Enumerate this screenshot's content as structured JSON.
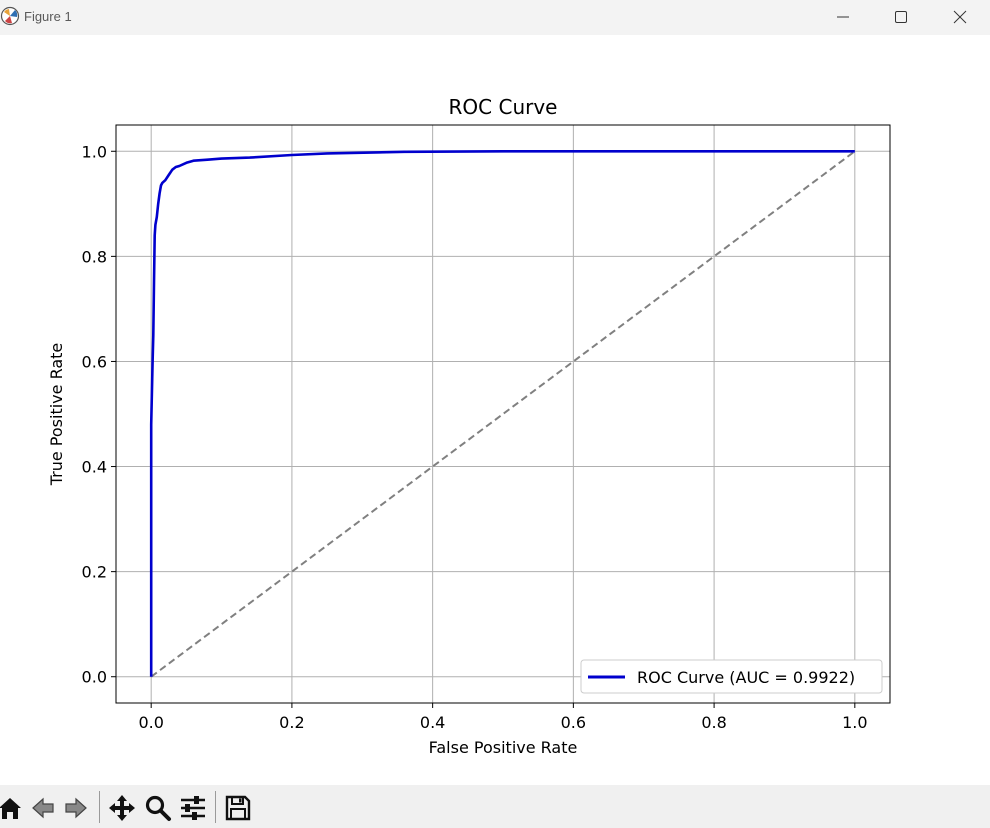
{
  "window": {
    "title": "Figure 1",
    "icons": [
      "matplotlib-icon",
      "minimize-icon",
      "maximize-icon",
      "close-icon"
    ]
  },
  "toolbar": {
    "icons": [
      "home-icon",
      "back-icon",
      "forward-icon",
      "pan-icon",
      "zoom-icon",
      "configure-subplots-icon",
      "save-icon"
    ]
  },
  "chart_data": {
    "type": "line",
    "title": "ROC Curve",
    "xlabel": "False Positive Rate",
    "ylabel": "True Positive Rate",
    "xlim": [
      -0.05,
      1.05
    ],
    "ylim": [
      -0.05,
      1.05
    ],
    "xticks": [
      "0.0",
      "0.2",
      "0.4",
      "0.6",
      "0.8",
      "1.0"
    ],
    "yticks": [
      "0.0",
      "0.2",
      "0.4",
      "0.6",
      "0.8",
      "1.0"
    ],
    "grid": true,
    "legend": {
      "position": "lower-right",
      "entries": [
        "ROC Curve (AUC = 0.9922)"
      ]
    },
    "series": [
      {
        "name": "ROC Curve (AUC = 0.9922)",
        "color": "#0000cd",
        "style": "solid",
        "x": [
          0.0,
          0.0,
          0.002,
          0.003,
          0.004,
          0.005,
          0.006,
          0.008,
          0.01,
          0.012,
          0.014,
          0.016,
          0.02,
          0.025,
          0.03,
          0.035,
          0.04,
          0.05,
          0.06,
          0.08,
          0.1,
          0.14,
          0.2,
          0.25,
          0.36,
          0.5,
          0.7,
          1.0
        ],
        "y": [
          0.0,
          0.48,
          0.6,
          0.65,
          0.75,
          0.84,
          0.86,
          0.875,
          0.9,
          0.92,
          0.935,
          0.94,
          0.945,
          0.955,
          0.965,
          0.97,
          0.972,
          0.978,
          0.982,
          0.984,
          0.986,
          0.988,
          0.993,
          0.996,
          0.999,
          1.0,
          1.0,
          1.0
        ]
      },
      {
        "color": "#808080",
        "style": "dashed",
        "x": [
          0.0,
          1.0
        ],
        "y": [
          0.0,
          1.0
        ]
      }
    ]
  }
}
